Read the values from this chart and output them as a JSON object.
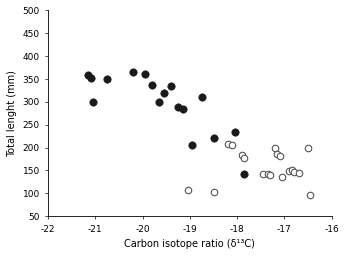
{
  "closed_circles": [
    [
      -21.15,
      358
    ],
    [
      -21.1,
      353
    ],
    [
      -21.05,
      300
    ],
    [
      -20.75,
      349
    ],
    [
      -20.2,
      365
    ],
    [
      -19.95,
      360
    ],
    [
      -19.8,
      337
    ],
    [
      -19.65,
      300
    ],
    [
      -19.55,
      320
    ],
    [
      -19.4,
      335
    ],
    [
      -19.25,
      288
    ],
    [
      -19.15,
      285
    ],
    [
      -18.95,
      205
    ],
    [
      -18.75,
      310
    ],
    [
      -18.5,
      220
    ],
    [
      -18.05,
      235
    ],
    [
      -17.85,
      143
    ]
  ],
  "open_circles": [
    [
      -19.05,
      107
    ],
    [
      -18.5,
      103
    ],
    [
      -18.2,
      207
    ],
    [
      -18.1,
      205
    ],
    [
      -17.9,
      183
    ],
    [
      -17.85,
      178
    ],
    [
      -17.45,
      143
    ],
    [
      -17.35,
      143
    ],
    [
      -17.3,
      140
    ],
    [
      -17.2,
      200
    ],
    [
      -17.15,
      185
    ],
    [
      -17.1,
      182
    ],
    [
      -17.05,
      135
    ],
    [
      -16.9,
      148
    ],
    [
      -16.85,
      150
    ],
    [
      -16.8,
      147
    ],
    [
      -16.7,
      145
    ],
    [
      -16.5,
      200
    ],
    [
      -16.45,
      97
    ]
  ],
  "xlim": [
    -22,
    -16
  ],
  "ylim": [
    50,
    500
  ],
  "xticks": [
    -22,
    -21,
    -20,
    -19,
    -18,
    -17,
    -16
  ],
  "yticks": [
    50,
    100,
    150,
    200,
    250,
    300,
    350,
    400,
    450,
    500
  ],
  "xlabel": "Carbon isotope ratio (δ¹³C)",
  "ylabel": "Total lenght (mm)",
  "marker_size_closed": 28,
  "marker_size_open": 22,
  "closed_color": "#1a1a1a",
  "open_facecolor": "#ffffff",
  "open_edgecolor": "#555555",
  "closed_linewidth": 0.5,
  "open_linewidth": 0.8,
  "tick_fontsize": 6.5,
  "label_fontsize": 7,
  "spine_linewidth": 0.6
}
